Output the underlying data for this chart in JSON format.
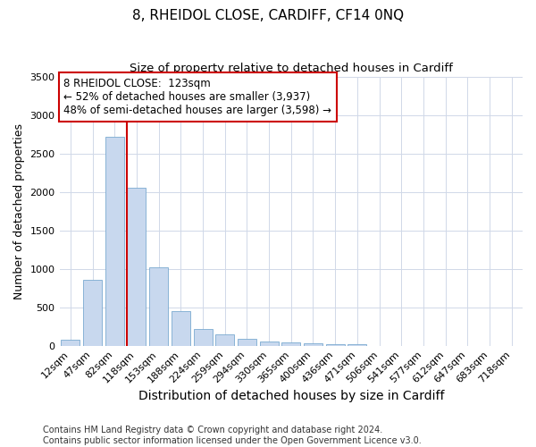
{
  "title1": "8, RHEIDOL CLOSE, CARDIFF, CF14 0NQ",
  "title2": "Size of property relative to detached houses in Cardiff",
  "xlabel": "Distribution of detached houses by size in Cardiff",
  "ylabel": "Number of detached properties",
  "categories": [
    "12sqm",
    "47sqm",
    "82sqm",
    "118sqm",
    "153sqm",
    "188sqm",
    "224sqm",
    "259sqm",
    "294sqm",
    "330sqm",
    "365sqm",
    "400sqm",
    "436sqm",
    "471sqm",
    "506sqm",
    "541sqm",
    "577sqm",
    "612sqm",
    "647sqm",
    "683sqm",
    "718sqm"
  ],
  "values": [
    75,
    850,
    2720,
    2050,
    1020,
    450,
    215,
    150,
    85,
    55,
    40,
    30,
    22,
    15,
    0,
    0,
    0,
    0,
    0,
    0,
    0
  ],
  "bar_color": "#c8d8ee",
  "bar_edge_color": "#7aaad0",
  "vline_color": "#cc0000",
  "annotation_text": "8 RHEIDOL CLOSE:  123sqm\n← 52% of detached houses are smaller (3,937)\n48% of semi-detached houses are larger (3,598) →",
  "annotation_box_facecolor": "#ffffff",
  "annotation_box_edgecolor": "#cc0000",
  "ylim": [
    0,
    3500
  ],
  "yticks": [
    0,
    500,
    1000,
    1500,
    2000,
    2500,
    3000,
    3500
  ],
  "footnote": "Contains HM Land Registry data © Crown copyright and database right 2024.\nContains public sector information licensed under the Open Government Licence v3.0.",
  "bg_color": "#ffffff",
  "plot_bg_color": "#ffffff",
  "grid_color": "#d0d8e8",
  "title1_fontsize": 11,
  "title2_fontsize": 9.5,
  "xlabel_fontsize": 10,
  "ylabel_fontsize": 9,
  "tick_fontsize": 8,
  "footnote_fontsize": 7,
  "vline_bar_index": 3
}
